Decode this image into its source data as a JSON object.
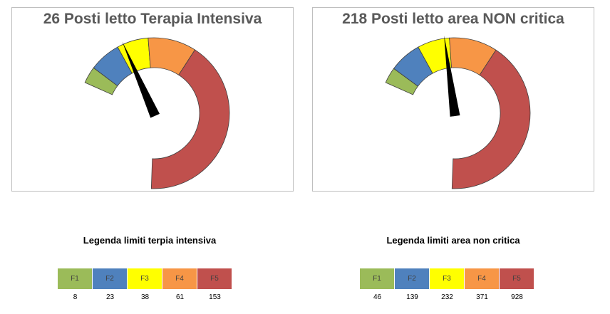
{
  "chart_data": [
    {
      "type": "gauge",
      "title": "26 Posti letto Terapia Intensiva",
      "value": 26,
      "thresholds": [
        8,
        23,
        38,
        61,
        153
      ],
      "bands": [
        "F1",
        "F2",
        "F3",
        "F4",
        "F5"
      ],
      "band_colors": [
        "#9BBB59",
        "#4F81BD",
        "#FFFF00",
        "#F79646",
        "#C0504D"
      ],
      "legend_title": "Legenda limiti terpia intensiva"
    },
    {
      "type": "gauge",
      "title": "218 Posti letto area NON critica",
      "value": 218,
      "thresholds": [
        46,
        139,
        232,
        371,
        928
      ],
      "bands": [
        "F1",
        "F2",
        "F3",
        "F4",
        "F5"
      ],
      "band_colors": [
        "#9BBB59",
        "#4F81BD",
        "#FFFF00",
        "#F79646",
        "#C0504D"
      ],
      "legend_title": "Legenda limiti area non critica"
    }
  ]
}
